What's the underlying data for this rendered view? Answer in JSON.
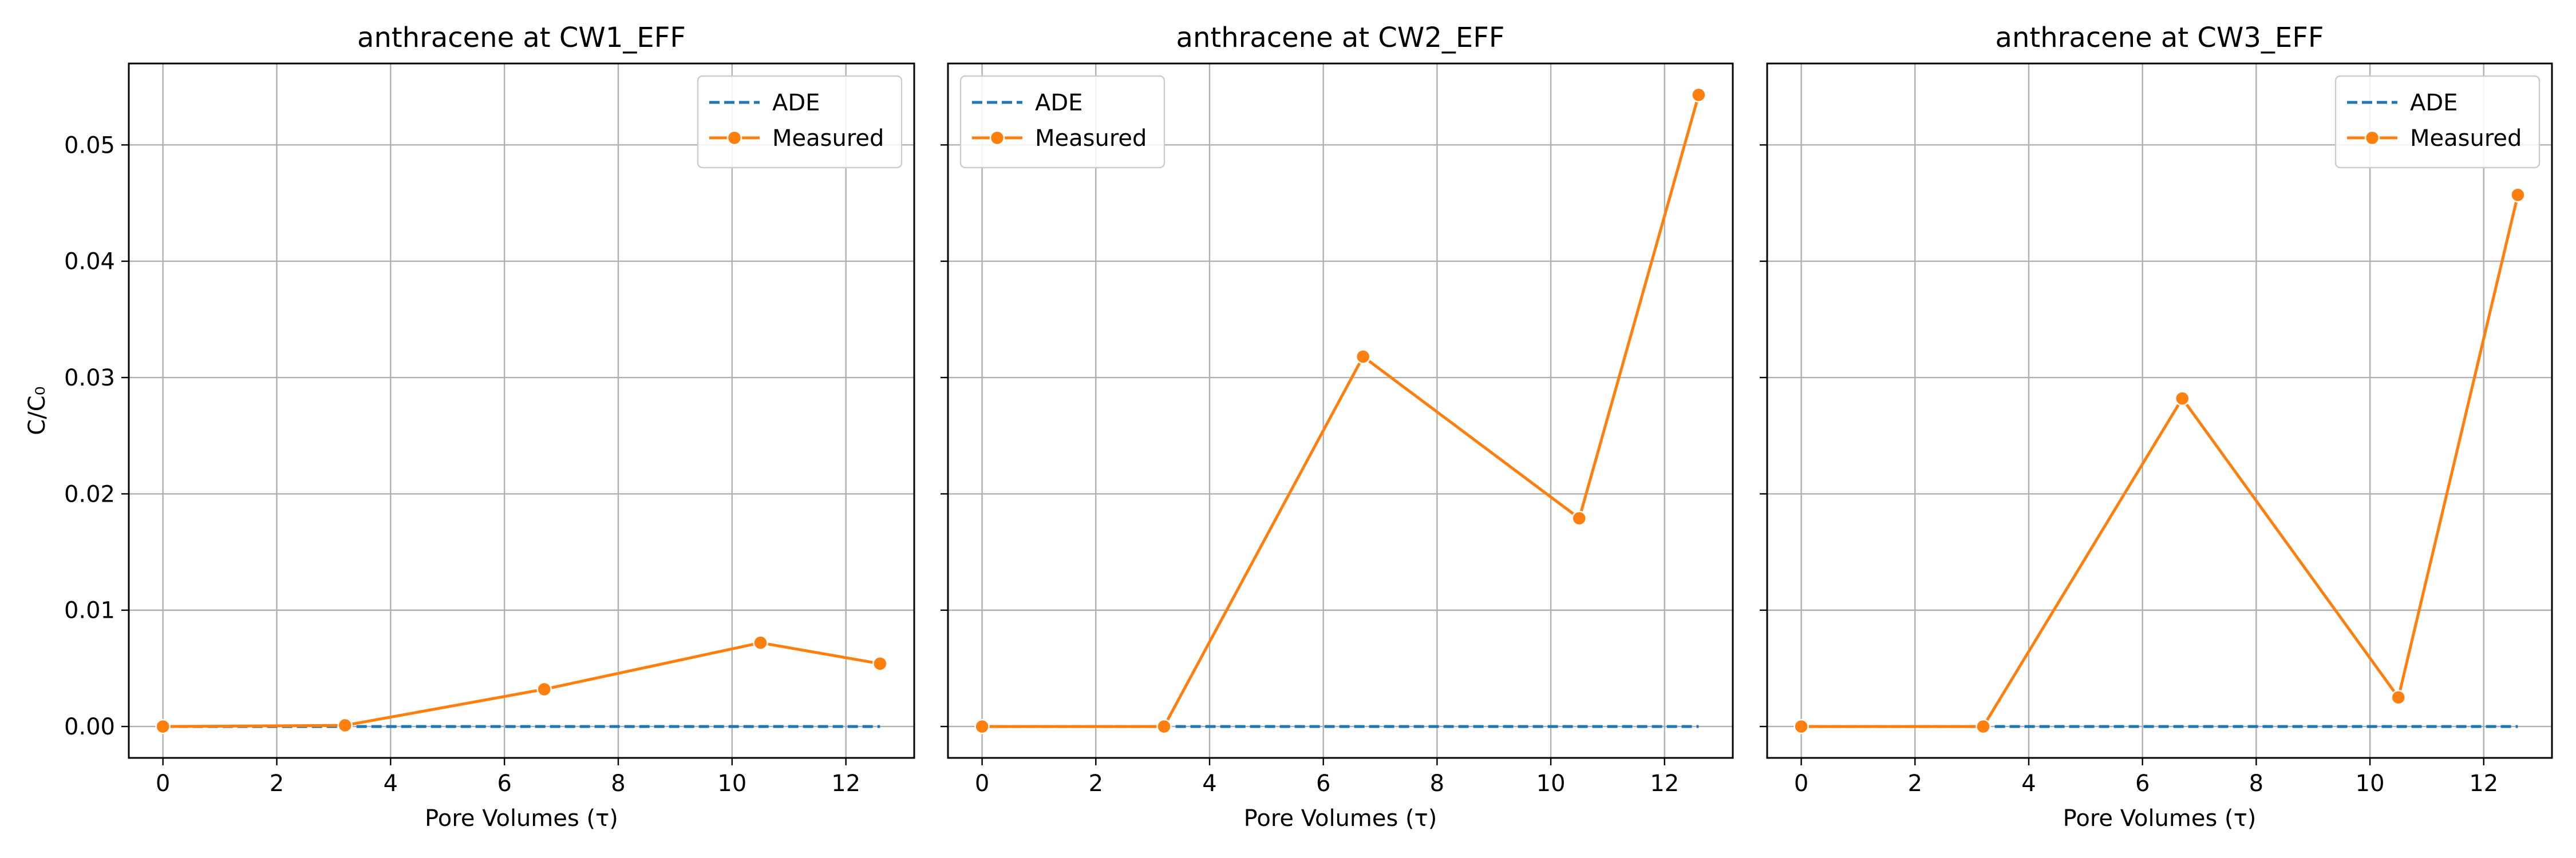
{
  "chart_data": [
    {
      "type": "line",
      "title": "anthracene at CW1_EFF",
      "xlabel": "Pore Volumes (τ)",
      "ylabel": "C/C₀",
      "xlim": [
        -0.6,
        13.2
      ],
      "ylim": [
        -0.0027,
        0.057
      ],
      "xticks": [
        0,
        2,
        4,
        6,
        8,
        10,
        12
      ],
      "yticks": [
        0.0,
        0.01,
        0.02,
        0.03,
        0.04,
        0.05
      ],
      "ytick_labels": [
        "0.00",
        "0.01",
        "0.02",
        "0.03",
        "0.04",
        "0.05"
      ],
      "show_yticklabels": true,
      "grid": true,
      "legend_position": "top-right",
      "series": [
        {
          "name": "ADE",
          "style": "dashed",
          "color": "#1f77b4",
          "markers": false,
          "x": [
            0,
            3.2,
            12.6
          ],
          "y": [
            0,
            0,
            0
          ]
        },
        {
          "name": "Measured",
          "style": "solid",
          "color": "#ff7f0e",
          "markers": true,
          "x": [
            0,
            3.2,
            6.7,
            10.5,
            12.6
          ],
          "y": [
            0.0,
            0.0001,
            0.0032,
            0.0072,
            0.0054
          ]
        }
      ]
    },
    {
      "type": "line",
      "title": "anthracene at CW2_EFF",
      "xlabel": "Pore Volumes (τ)",
      "ylabel": "",
      "xlim": [
        -0.6,
        13.2
      ],
      "ylim": [
        -0.0027,
        0.057
      ],
      "xticks": [
        0,
        2,
        4,
        6,
        8,
        10,
        12
      ],
      "yticks": [
        0.0,
        0.01,
        0.02,
        0.03,
        0.04,
        0.05
      ],
      "ytick_labels": [
        "0.00",
        "0.01",
        "0.02",
        "0.03",
        "0.04",
        "0.05"
      ],
      "show_yticklabels": false,
      "grid": true,
      "legend_position": "top-left",
      "series": [
        {
          "name": "ADE",
          "style": "dashed",
          "color": "#1f77b4",
          "markers": false,
          "x": [
            0,
            3.2,
            12.6
          ],
          "y": [
            0,
            0,
            0
          ]
        },
        {
          "name": "Measured",
          "style": "solid",
          "color": "#ff7f0e",
          "markers": true,
          "x": [
            0,
            3.2,
            6.7,
            10.5,
            12.6
          ],
          "y": [
            0.0,
            0.0,
            0.0318,
            0.0179,
            0.0543
          ]
        }
      ]
    },
    {
      "type": "line",
      "title": "anthracene at CW3_EFF",
      "xlabel": "Pore Volumes (τ)",
      "ylabel": "",
      "xlim": [
        -0.6,
        13.2
      ],
      "ylim": [
        -0.0027,
        0.057
      ],
      "xticks": [
        0,
        2,
        4,
        6,
        8,
        10,
        12
      ],
      "yticks": [
        0.0,
        0.01,
        0.02,
        0.03,
        0.04,
        0.05
      ],
      "ytick_labels": [
        "0.00",
        "0.01",
        "0.02",
        "0.03",
        "0.04",
        "0.05"
      ],
      "show_yticklabels": false,
      "grid": true,
      "legend_position": "top-right",
      "series": [
        {
          "name": "ADE",
          "style": "dashed",
          "color": "#1f77b4",
          "markers": false,
          "x": [
            0,
            3.2,
            12.6
          ],
          "y": [
            0,
            0,
            0
          ]
        },
        {
          "name": "Measured",
          "style": "solid",
          "color": "#ff7f0e",
          "markers": true,
          "x": [
            0,
            3.2,
            6.7,
            10.5,
            12.6
          ],
          "y": [
            0.0,
            0.0,
            0.0282,
            0.0025,
            0.0457
          ]
        }
      ]
    }
  ]
}
